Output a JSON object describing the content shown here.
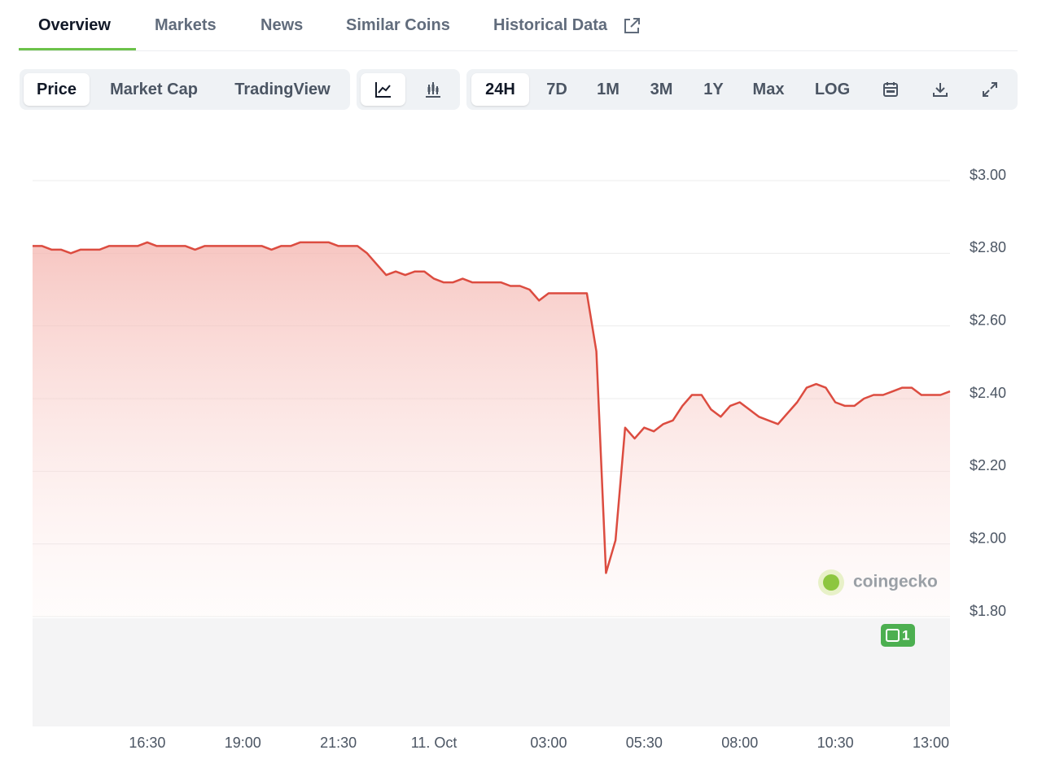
{
  "tabs": [
    "Overview",
    "Markets",
    "News",
    "Similar Coins",
    "Historical Data"
  ],
  "toolbar": {
    "views": [
      "Price",
      "Market Cap",
      "TradingView"
    ],
    "ranges": [
      "24H",
      "7D",
      "1M",
      "3M",
      "1Y",
      "Max",
      "LOG"
    ]
  },
  "watermark": "coingecko",
  "news_badge": "1",
  "chart_data": {
    "type": "area",
    "categories": [
      null,
      null,
      null,
      null,
      null,
      null,
      null,
      null,
      null,
      null,
      null,
      null,
      "16:30",
      null,
      null,
      null,
      null,
      null,
      null,
      null,
      null,
      null,
      "19:00",
      null,
      null,
      null,
      null,
      null,
      null,
      null,
      null,
      null,
      "21:30",
      null,
      null,
      null,
      null,
      null,
      null,
      null,
      null,
      null,
      "11. Oct",
      null,
      null,
      null,
      null,
      null,
      null,
      null,
      null,
      null,
      null,
      null,
      "03:00",
      null,
      null,
      null,
      null,
      null,
      null,
      null,
      null,
      null,
      "05:30",
      null,
      null,
      null,
      null,
      null,
      null,
      null,
      null,
      null,
      "08:00",
      null,
      null,
      null,
      null,
      null,
      null,
      null,
      null,
      null,
      "10:30",
      null,
      null,
      null,
      null,
      null,
      null,
      null,
      null,
      null,
      "13:00",
      null,
      null
    ],
    "series": [
      {
        "name": "Price",
        "color": "#dc4c40",
        "values": [
          2.82,
          2.82,
          2.81,
          2.81,
          2.8,
          2.81,
          2.81,
          2.81,
          2.82,
          2.82,
          2.82,
          2.82,
          2.83,
          2.82,
          2.82,
          2.82,
          2.82,
          2.81,
          2.82,
          2.82,
          2.82,
          2.82,
          2.82,
          2.82,
          2.82,
          2.81,
          2.82,
          2.82,
          2.83,
          2.83,
          2.83,
          2.83,
          2.82,
          2.82,
          2.82,
          2.8,
          2.77,
          2.74,
          2.75,
          2.74,
          2.75,
          2.75,
          2.73,
          2.72,
          2.72,
          2.73,
          2.72,
          2.72,
          2.72,
          2.72,
          2.71,
          2.71,
          2.7,
          2.67,
          2.69,
          2.69,
          2.69,
          2.69,
          2.69,
          2.53,
          1.92,
          2.01,
          2.32,
          2.29,
          2.32,
          2.31,
          2.33,
          2.34,
          2.38,
          2.41,
          2.41,
          2.37,
          2.35,
          2.38,
          2.39,
          2.37,
          2.35,
          2.34,
          2.33,
          2.36,
          2.39,
          2.43,
          2.44,
          2.43,
          2.39,
          2.38,
          2.38,
          2.4,
          2.41,
          2.41,
          2.42,
          2.43,
          2.43,
          2.41,
          2.41,
          2.41,
          2.42
        ]
      }
    ],
    "ylim": [
      1.8,
      3.0
    ],
    "yticks": [
      {
        "value": 3.0,
        "label": "$3.00"
      },
      {
        "value": 2.8,
        "label": "$2.80"
      },
      {
        "value": 2.6,
        "label": "$2.60"
      },
      {
        "value": 2.4,
        "label": "$2.40"
      },
      {
        "value": 2.2,
        "label": "$2.20"
      },
      {
        "value": 2.0,
        "label": "$2.00"
      },
      {
        "value": 1.8,
        "label": "$1.80"
      }
    ],
    "grid": true
  }
}
